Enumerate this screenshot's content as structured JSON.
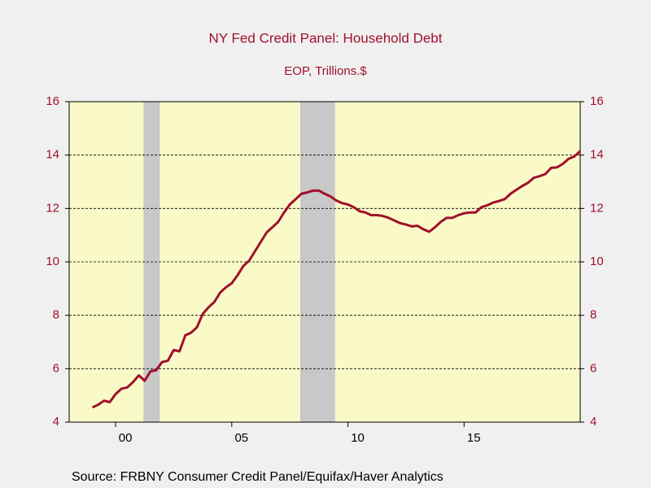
{
  "chart_data": {
    "type": "line",
    "title": "NY Fed Credit Panel: Household Debt",
    "subtitle": "EOP, Trillions.$",
    "source": "Source:  FRBNY Consumer Credit Panel/Equifax/Haver Analytics",
    "x": [
      1999.0,
      1999.25,
      1999.5,
      1999.75,
      2000.0,
      2000.25,
      2000.5,
      2000.75,
      2001.0,
      2001.25,
      2001.5,
      2001.75,
      2002.0,
      2002.25,
      2002.5,
      2002.75,
      2003.0,
      2003.25,
      2003.5,
      2003.75,
      2004.0,
      2004.25,
      2004.5,
      2004.75,
      2005.0,
      2005.25,
      2005.5,
      2005.75,
      2006.0,
      2006.25,
      2006.5,
      2006.75,
      2007.0,
      2007.25,
      2007.5,
      2007.75,
      2008.0,
      2008.25,
      2008.5,
      2008.75,
      2009.0,
      2009.25,
      2009.5,
      2009.75,
      2010.0,
      2010.25,
      2010.5,
      2010.75,
      2011.0,
      2011.25,
      2011.5,
      2011.75,
      2012.0,
      2012.25,
      2012.5,
      2012.75,
      2013.0,
      2013.25,
      2013.5,
      2013.75,
      2014.0,
      2014.25,
      2014.5,
      2014.75,
      2015.0,
      2015.25,
      2015.5,
      2015.75,
      2016.0,
      2016.25,
      2016.5,
      2016.75,
      2017.0,
      2017.25,
      2017.5,
      2017.75,
      2018.0,
      2018.25,
      2018.5,
      2018.75,
      2019.0,
      2019.25,
      2019.5,
      2019.75,
      2020.0
    ],
    "series": [
      {
        "name": "Household Debt",
        "color": "#a0102c",
        "values": [
          4.55,
          4.65,
          4.8,
          4.75,
          5.05,
          5.25,
          5.3,
          5.5,
          5.75,
          5.55,
          5.9,
          5.95,
          6.25,
          6.3,
          6.7,
          6.65,
          7.25,
          7.35,
          7.55,
          8.05,
          8.3,
          8.5,
          8.85,
          9.05,
          9.2,
          9.5,
          9.85,
          10.05,
          10.4,
          10.75,
          11.1,
          11.3,
          11.5,
          11.85,
          12.15,
          12.35,
          12.55,
          12.6,
          12.67,
          12.67,
          12.55,
          12.45,
          12.3,
          12.2,
          12.15,
          12.05,
          11.9,
          11.85,
          11.75,
          11.75,
          11.72,
          11.65,
          11.55,
          11.45,
          11.4,
          11.33,
          11.35,
          11.22,
          11.13,
          11.3,
          11.5,
          11.65,
          11.65,
          11.75,
          11.82,
          11.85,
          11.85,
          12.05,
          12.12,
          12.22,
          12.28,
          12.35,
          12.55,
          12.7,
          12.84,
          12.96,
          13.15,
          13.21,
          13.29,
          13.52,
          13.54,
          13.67,
          13.86,
          13.95,
          14.15
        ]
      }
    ],
    "recessions": [
      [
        2001.2,
        2001.9
      ],
      [
        2007.95,
        2009.45
      ]
    ],
    "xlim": [
      1998,
      2020
    ],
    "xticks": [
      {
        "value": 2000,
        "label": "00"
      },
      {
        "value": 2005,
        "label": "05"
      },
      {
        "value": 2010,
        "label": "10"
      },
      {
        "value": 2015,
        "label": "15"
      }
    ],
    "ylim": [
      4,
      16
    ],
    "yticks": [
      4,
      6,
      8,
      10,
      12,
      14,
      16
    ],
    "grid": true,
    "plot_background": "#fafac8",
    "recession_color": "#c8c8c8"
  }
}
